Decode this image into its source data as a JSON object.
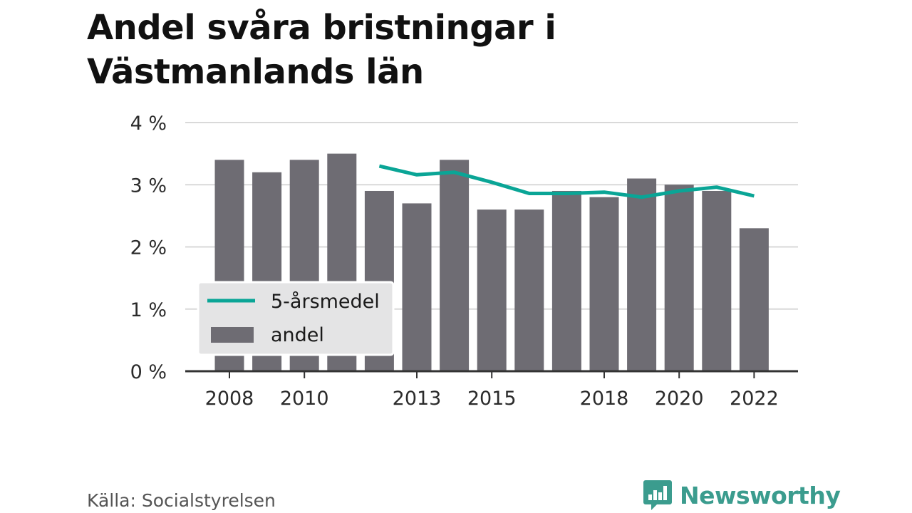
{
  "title": "Andel svåra bristningar i Västmanlands län",
  "source": "Källa: Socialstyrelsen",
  "brand": "Newsworthy",
  "colors": {
    "bar": "#6e6c73",
    "line": "#0aa596",
    "grid": "#d9d9d9",
    "axis": "#333333",
    "brand": "#3b9c8e"
  },
  "chart_data": {
    "type": "bar",
    "title": "Andel svåra bristningar i Västmanlands län",
    "xlabel": "",
    "ylabel": "",
    "ylim": [
      0,
      4
    ],
    "y_ticks": [
      "0 %",
      "1 %",
      "2 %",
      "3 %",
      "4 %"
    ],
    "x_tick_labels": [
      "2008",
      "2010",
      "2013",
      "2015",
      "2018",
      "2020",
      "2022"
    ],
    "categories": [
      2008,
      2009,
      2010,
      2011,
      2012,
      2013,
      2014,
      2015,
      2016,
      2017,
      2018,
      2019,
      2020,
      2021,
      2022
    ],
    "series": [
      {
        "name": "andel",
        "type": "bar",
        "values": [
          3.4,
          3.2,
          3.4,
          3.5,
          2.9,
          2.7,
          3.4,
          2.6,
          2.6,
          2.9,
          2.8,
          3.1,
          3.0,
          2.9,
          2.3
        ]
      },
      {
        "name": "5-årsmedel",
        "type": "line",
        "values": [
          null,
          null,
          null,
          null,
          3.3,
          3.16,
          3.2,
          3.04,
          2.86,
          2.86,
          2.88,
          2.8,
          2.9,
          2.96,
          2.82
        ]
      }
    ],
    "grid": true,
    "legend_position": "bottom-left"
  }
}
